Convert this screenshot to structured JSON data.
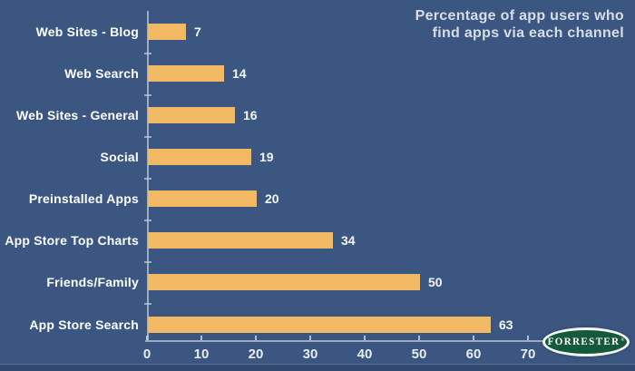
{
  "title": {
    "lines": [
      "Percentage of app users who",
      "find apps via each channel"
    ]
  },
  "chart_data": {
    "type": "bar",
    "orientation": "horizontal",
    "title": "Percentage of app users who find apps via each channel",
    "categories": [
      "Web Sites - Blog",
      "Web Search",
      "Web Sites - General",
      "Social",
      "Preinstalled Apps",
      "App Store Top Charts",
      "Friends/Family",
      "App Store Search"
    ],
    "values": [
      7,
      14,
      16,
      19,
      20,
      34,
      50,
      63
    ],
    "xlabel": "",
    "ylabel": "",
    "xlim": [
      0,
      70
    ],
    "xticks": [
      0,
      10,
      20,
      30,
      40,
      50,
      60,
      70
    ],
    "grid": false,
    "legend": null,
    "value_labels_shown": true
  },
  "colors": {
    "background": "#3B5680",
    "bar": "#F1B964",
    "axis": "#BECBD8",
    "category_label": "#FDFEFE",
    "value_label": "#F4F7FA",
    "tick_label": "#E7EDF3",
    "title": "#D7DEE6",
    "logo_green": "#14593C",
    "logo_ring": "#F3F6F3"
  },
  "logo": {
    "text": "FORRESTER",
    "mark": "®"
  }
}
